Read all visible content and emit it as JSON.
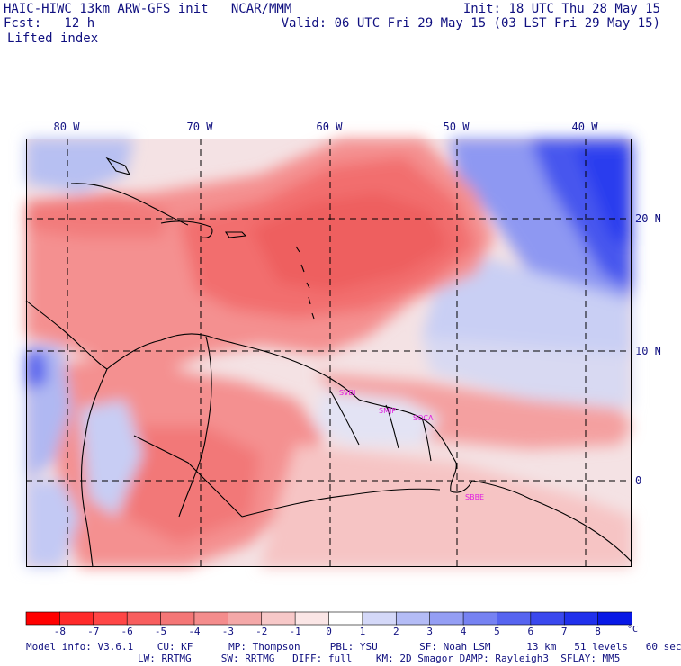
{
  "header": {
    "title_line1": "HAIC-HIWC 13km ARW-GFS init   NCAR/MMM",
    "forecast": "Fcst:   12 h",
    "init": "Init: 18 UTC Thu 28 May 15",
    "valid": "Valid: 06 UTC Fri 29 May 15 (03 LST Fri 29 May 15)",
    "field_name": "Lifted index"
  },
  "map": {
    "longitude_labels": [
      "80 W",
      "70 W",
      "60 W",
      "50 W",
      "40 W"
    ],
    "latitude_labels": [
      "20 N",
      "10 N",
      "0"
    ],
    "stations": [
      "SVBI",
      "SMJP",
      "SOCA",
      "SBBE"
    ],
    "colors": {
      "strong_unstable": "#ff3b3b",
      "unstable": "#f47a7a",
      "neutral": "#f7f4f6",
      "stable": "#9ea8f4",
      "strong_stable": "#2f3ff0",
      "coastline": "#000000",
      "grid": "#000000",
      "station": "#e020e0"
    }
  },
  "colorbar": {
    "labels": [
      "-8",
      "-7",
      "-6",
      "-5",
      "-4",
      "-3",
      "-2",
      "-1",
      "0",
      "1",
      "2",
      "3",
      "4",
      "5",
      "6",
      "7",
      "8"
    ],
    "unit": "°C",
    "colors": [
      "#ff0000",
      "#ff2a2a",
      "#ff4646",
      "#f85e5e",
      "#f47676",
      "#f48c8c",
      "#f4a8a8",
      "#f7c8c8",
      "#fbe6e6",
      "#ffffff",
      "#d4d8f8",
      "#b4bcf6",
      "#949ef4",
      "#7682f2",
      "#5664f0",
      "#3a48ee",
      "#2030ec",
      "#0818e6"
    ]
  },
  "footer": {
    "line1": "Model info: V3.6.1    CU: KF      MP: Thompson     PBL: YSU       SF: Noah LSM      13 km   51 levels   60 sec",
    "line2": "LW: RRTMG     SW: RRTMG   DIFF: full    KM: 2D Smagor DAMP: Rayleigh3  SFLAY: MM5"
  }
}
